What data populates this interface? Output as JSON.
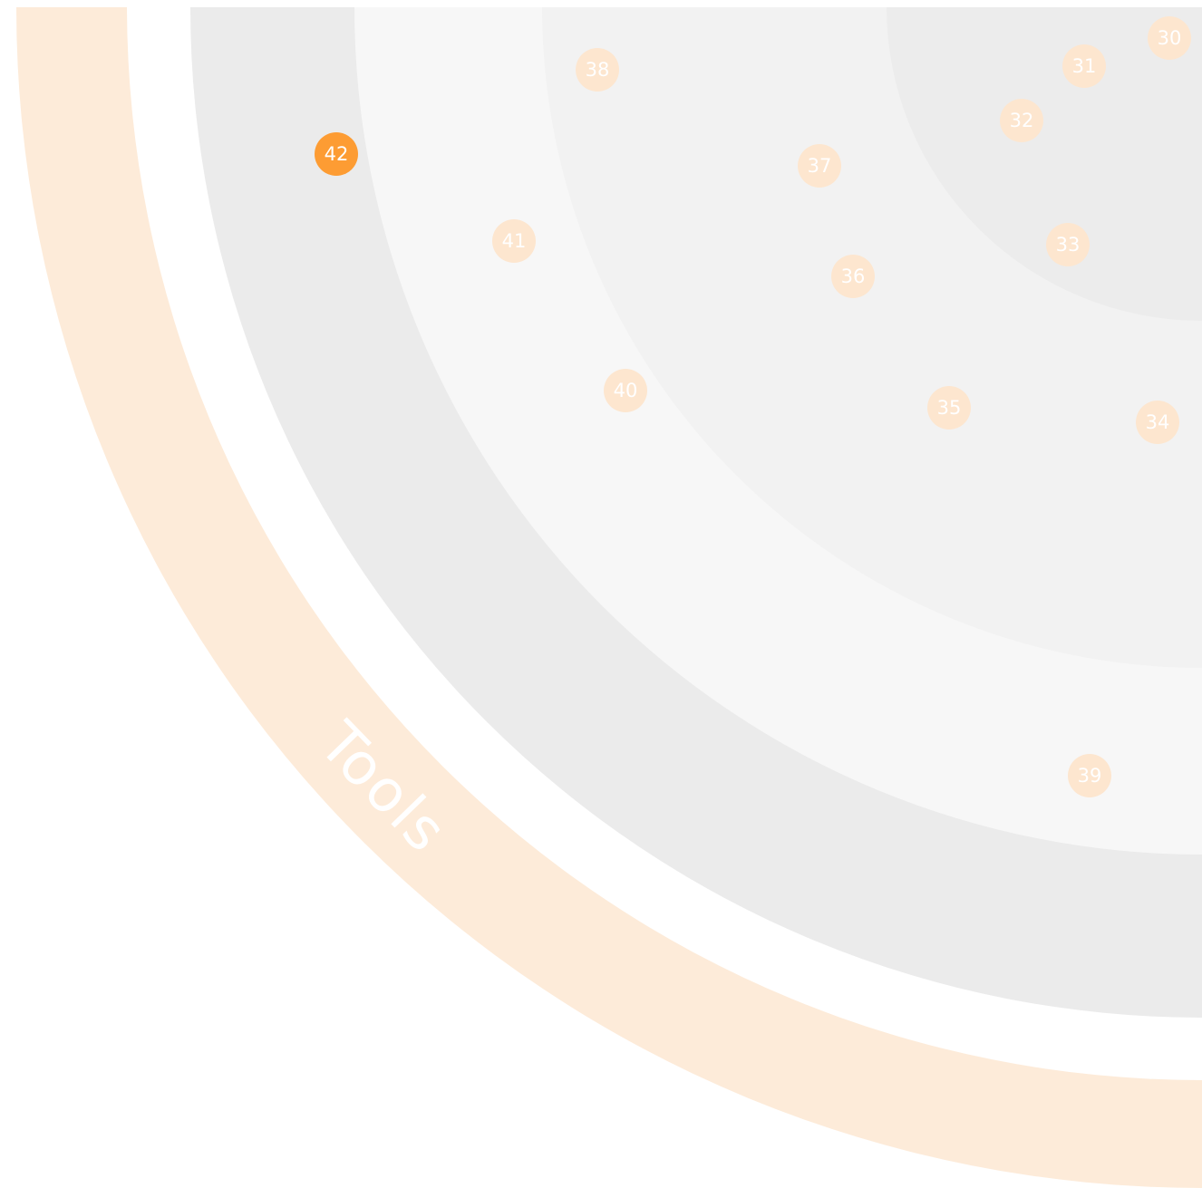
{
  "quadrant": {
    "name": "Tools",
    "colors": {
      "band": "#fdebd9",
      "blip_faded": "#fde6cf",
      "blip_active": "#fd9c33",
      "ring_outer": "#ebebeb",
      "ring_third": "#f7f7f7",
      "ring_second": "#f2f2f2",
      "ring_inner": "#ececec"
    }
  },
  "blips": [
    {
      "id": "30",
      "label": "30",
      "state": "faded"
    },
    {
      "id": "31",
      "label": "31",
      "state": "faded"
    },
    {
      "id": "32",
      "label": "32",
      "state": "faded"
    },
    {
      "id": "33",
      "label": "33",
      "state": "faded"
    },
    {
      "id": "34",
      "label": "34",
      "state": "faded"
    },
    {
      "id": "35",
      "label": "35",
      "state": "faded"
    },
    {
      "id": "36",
      "label": "36",
      "state": "faded"
    },
    {
      "id": "37",
      "label": "37",
      "state": "faded"
    },
    {
      "id": "38",
      "label": "38",
      "state": "faded"
    },
    {
      "id": "39",
      "label": "39",
      "state": "faded"
    },
    {
      "id": "40",
      "label": "40",
      "state": "faded"
    },
    {
      "id": "41",
      "label": "41",
      "state": "faded"
    },
    {
      "id": "42",
      "label": "42",
      "state": "active"
    }
  ]
}
